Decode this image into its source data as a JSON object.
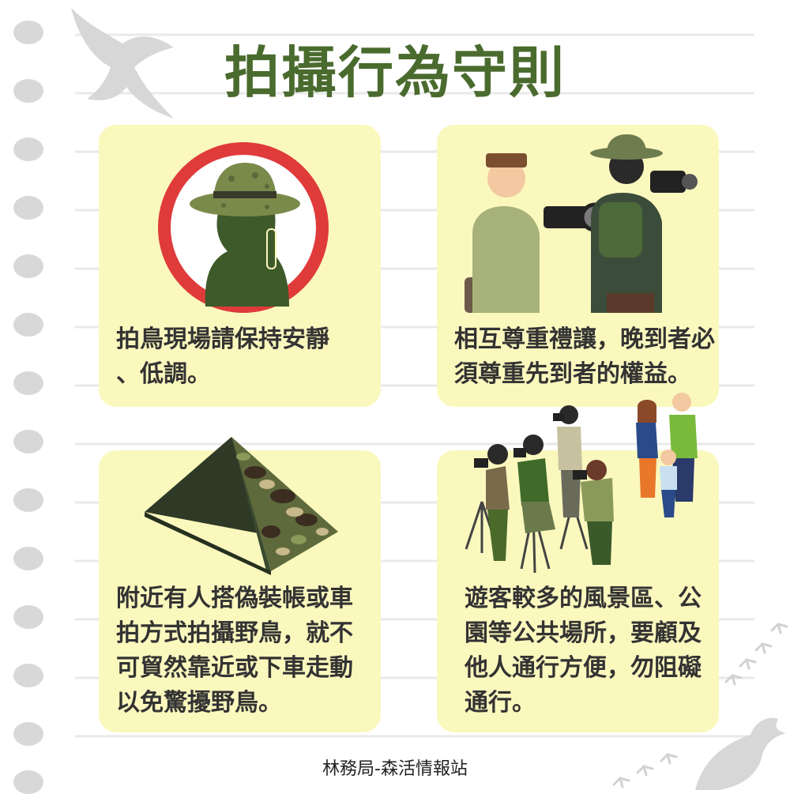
{
  "title": "拍攝行為守則",
  "colors": {
    "title": "#4a6b2e",
    "card": "#fbf8be",
    "text": "#333333",
    "prohibit": "#e03b3b"
  },
  "cards": [
    {
      "illustration": "no-noise-icon",
      "lines": [
        "拍鳥現場請保持安靜",
        "、低調。"
      ]
    },
    {
      "illustration": "photographers-icon",
      "lines": [
        "相互尊重禮讓，晚到者必",
        "須尊重先到者的權益。"
      ]
    },
    {
      "illustration": "camouflage-tent-icon",
      "lines": [
        "附近有人搭偽裝帳或車",
        "拍方式拍攝野鳥，就不",
        "可貿然靠近或下車走動",
        "以免驚擾野鳥。"
      ]
    },
    {
      "illustration": "crowd-icon",
      "lines": [
        "遊客較多的風景區、公",
        "園等公共場所，要顧及",
        "他人通行方便，勿阻礙",
        "通行。"
      ]
    }
  ],
  "footer": "林務局-森活情報站"
}
